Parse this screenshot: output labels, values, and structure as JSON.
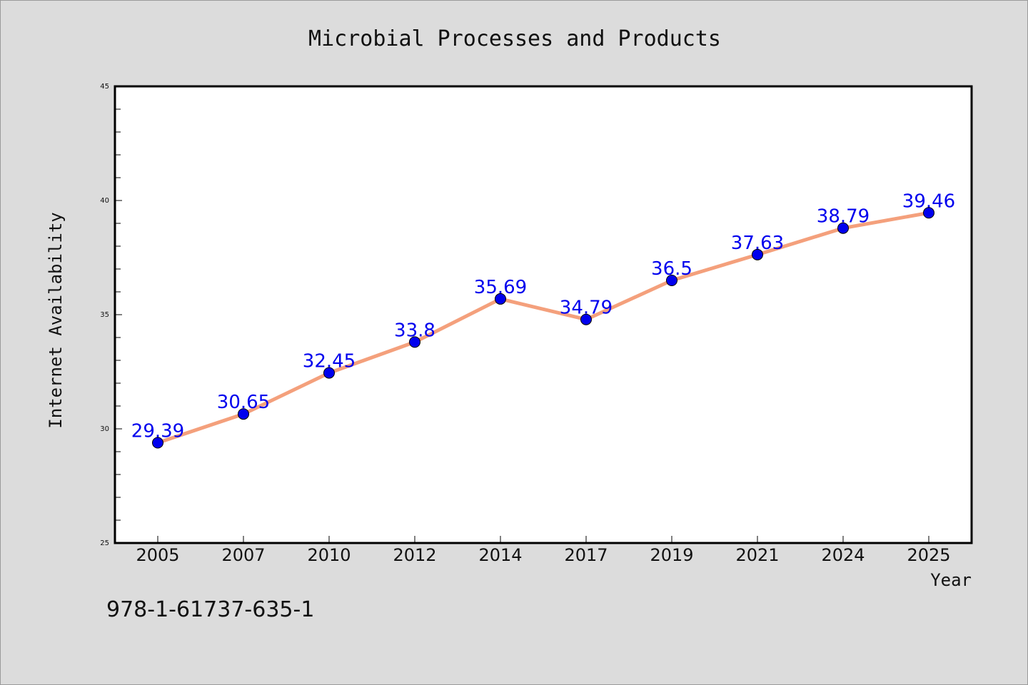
{
  "chart_data": {
    "type": "line",
    "title": "Microbial Processes and Products",
    "xlabel": "Year",
    "ylabel": "Internet Availability",
    "categories": [
      "2005",
      "2007",
      "2010",
      "2012",
      "2014",
      "2017",
      "2019",
      "2021",
      "2024",
      "2025"
    ],
    "series": [
      {
        "values": [
          29.39,
          30.65,
          32.45,
          33.8,
          35.69,
          34.79,
          36.5,
          37.63,
          38.79,
          39.46
        ],
        "data_labels": [
          "29.39",
          "30.65",
          "32.45",
          "33.8",
          "35.69",
          "34.79",
          "36.5",
          "37.63",
          "38.79",
          "39.46"
        ],
        "line_color": "#f4a07c",
        "marker_color": "#0000ee",
        "label_color": "#0000ee"
      }
    ],
    "ylim": [
      25,
      45
    ],
    "y_ticks": [
      "25",
      "30",
      "35",
      "40",
      "45"
    ],
    "grid": false,
    "legend": "none",
    "background_color": "#dcdcdc",
    "plot_background_color": "#ffffff"
  },
  "footer": {
    "isbn": "978-1-61737-635-1"
  }
}
